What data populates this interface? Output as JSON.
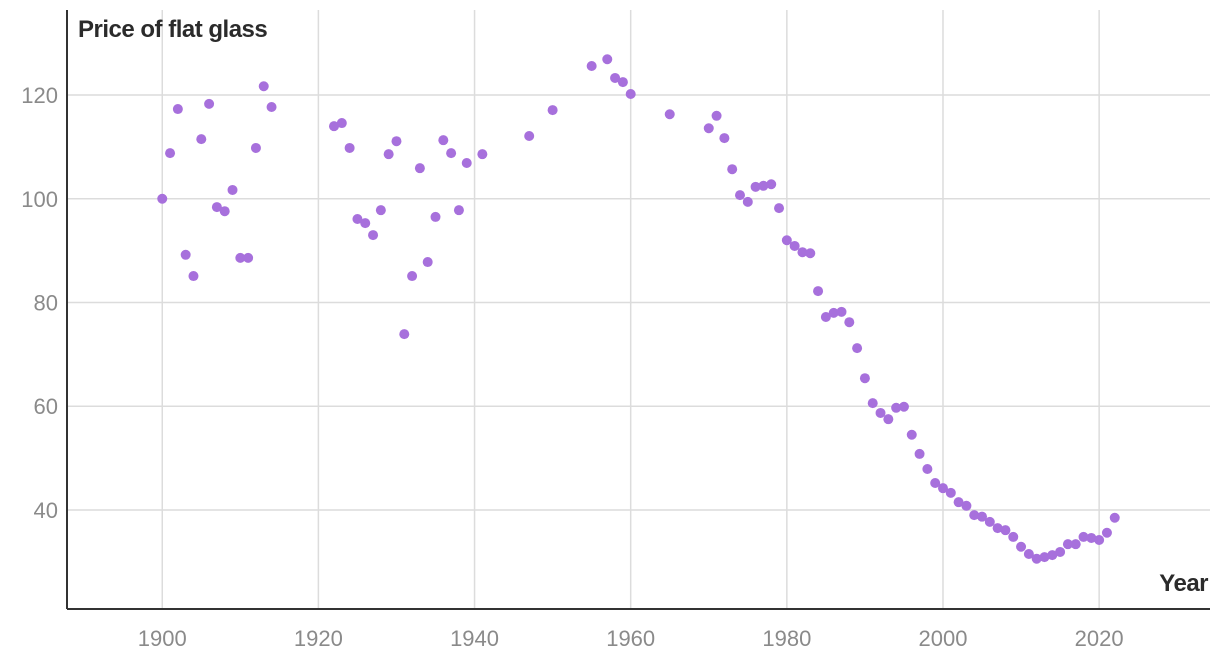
{
  "chart_data": {
    "type": "scatter",
    "title": "Price of flat glass",
    "x_label": "Year",
    "x": [
      1900,
      1901,
      1902,
      1903,
      1904,
      1905,
      1906,
      1907,
      1908,
      1909,
      1910,
      1911,
      1912,
      1913,
      1914,
      1922,
      1923,
      1924,
      1925,
      1926,
      1927,
      1928,
      1929,
      1930,
      1931,
      1932,
      1933,
      1934,
      1935,
      1936,
      1937,
      1938,
      1939,
      1941,
      1947,
      1950,
      1955,
      1957,
      1958,
      1959,
      1960,
      1965,
      1970,
      1971,
      1972,
      1973,
      1974,
      1975,
      1976,
      1977,
      1978,
      1979,
      1980,
      1981,
      1982,
      1983,
      1984,
      1985,
      1986,
      1987,
      1988,
      1989,
      1990,
      1991,
      1992,
      1993,
      1994,
      1995,
      1996,
      1997,
      1998,
      1999,
      2000,
      2001,
      2002,
      2003,
      2004,
      2005,
      2006,
      2007,
      2008,
      2009,
      2010,
      2011,
      2012,
      2013,
      2014,
      2015,
      2016,
      2017,
      2018,
      2019,
      2020,
      2021,
      2022
    ],
    "values": [
      100,
      108.8,
      117.3,
      89.2,
      85.1,
      111.5,
      118.3,
      98.4,
      97.6,
      101.7,
      88.6,
      88.6,
      109.8,
      121.7,
      117.7,
      114.0,
      114.6,
      109.8,
      96.1,
      95.3,
      93.0,
      97.8,
      108.6,
      111.1,
      73.9,
      85.1,
      105.9,
      87.8,
      96.5,
      111.3,
      108.8,
      97.8,
      106.9,
      108.6,
      112.1,
      117.1,
      125.6,
      126.9,
      123.3,
      122.5,
      120.2,
      116.3,
      113.6,
      116.0,
      111.7,
      105.7,
      100.7,
      99.4,
      102.3,
      102.5,
      102.8,
      98.2,
      92.0,
      90.9,
      89.7,
      89.5,
      82.2,
      77.2,
      78.0,
      78.2,
      76.2,
      71.2,
      65.4,
      60.6,
      58.7,
      57.5,
      59.7,
      59.9,
      54.5,
      50.8,
      47.9,
      45.2,
      44.2,
      43.3,
      41.5,
      40.8,
      39.0,
      38.7,
      37.7,
      36.5,
      36.1,
      34.8,
      32.9,
      31.5,
      30.6,
      30.9,
      31.3,
      31.9,
      33.4,
      33.4,
      34.8,
      34.6,
      34.2,
      35.6,
      38.5
    ],
    "color": "#a770dc",
    "xlim": [
      1887.8,
      2034.2
    ],
    "ylim": [
      20.9,
      136.4
    ],
    "xticks": [
      1900,
      1920,
      1940,
      1960,
      1980,
      2000,
      2020
    ],
    "yticks": [
      40,
      60,
      80,
      100,
      120
    ],
    "grid": true
  }
}
